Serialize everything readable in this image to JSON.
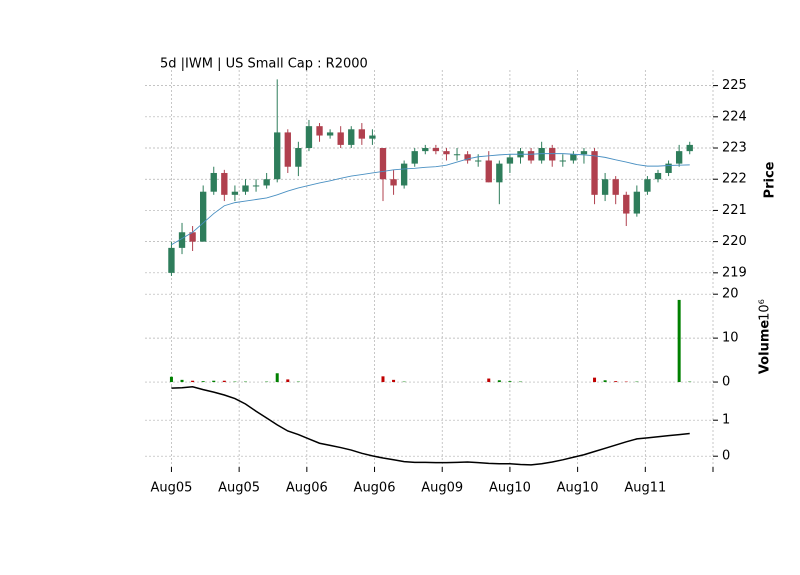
{
  "chart_data": [
    {
      "type": "candlestick",
      "title": "5d |IWM | US Small Cap : R2000",
      "ylabel": "Price",
      "open": [
        219.0,
        219.8,
        220.3,
        220.0,
        221.6,
        222.2,
        221.5,
        221.6,
        221.8,
        221.8,
        222.0,
        223.5,
        222.4,
        223.0,
        223.7,
        223.4,
        223.5,
        223.1,
        223.6,
        223.3,
        223.0,
        222.0,
        221.8,
        222.5,
        222.9,
        223.0,
        222.9,
        222.8,
        222.8,
        222.6,
        222.6,
        221.9,
        222.5,
        222.7,
        222.9,
        222.6,
        223.0,
        222.6,
        222.6,
        222.8,
        222.9,
        221.5,
        222.0,
        221.5,
        220.9,
        221.6,
        222.0,
        222.2,
        222.5,
        222.9
      ],
      "high": [
        220.0,
        220.6,
        220.5,
        221.8,
        222.4,
        222.3,
        221.8,
        222.0,
        222.0,
        222.2,
        225.2,
        223.6,
        223.2,
        223.9,
        223.8,
        223.6,
        223.7,
        223.7,
        223.8,
        223.6,
        223.0,
        222.3,
        222.6,
        223.0,
        223.1,
        223.1,
        223.0,
        223.0,
        222.9,
        222.8,
        222.9,
        222.6,
        222.8,
        223.0,
        223.0,
        223.2,
        223.1,
        222.8,
        222.9,
        223.0,
        223.0,
        222.2,
        222.1,
        221.6,
        221.8,
        222.1,
        222.3,
        222.6,
        223.1,
        223.2
      ],
      "low": [
        218.9,
        219.6,
        219.7,
        220.0,
        221.5,
        221.3,
        221.3,
        221.5,
        221.6,
        221.7,
        221.9,
        222.2,
        222.1,
        222.9,
        223.2,
        223.3,
        223.0,
        223.0,
        223.1,
        223.1,
        221.3,
        221.5,
        221.7,
        222.4,
        222.8,
        222.8,
        222.6,
        222.6,
        222.5,
        222.4,
        221.9,
        221.2,
        222.2,
        222.5,
        222.5,
        222.5,
        222.4,
        222.4,
        222.5,
        222.5,
        221.2,
        221.3,
        221.2,
        220.5,
        220.8,
        221.5,
        221.9,
        222.1,
        222.4,
        222.8
      ],
      "close": [
        219.8,
        220.3,
        220.0,
        221.6,
        222.2,
        221.5,
        221.6,
        221.8,
        221.8,
        222.0,
        223.5,
        222.4,
        223.0,
        223.7,
        223.4,
        223.5,
        223.1,
        223.6,
        223.3,
        223.4,
        222.0,
        221.8,
        222.5,
        222.9,
        223.0,
        222.9,
        222.8,
        222.8,
        222.6,
        222.6,
        221.9,
        222.5,
        222.7,
        222.9,
        222.6,
        223.0,
        222.6,
        222.6,
        222.8,
        222.9,
        221.5,
        222.0,
        221.5,
        220.9,
        221.6,
        222.0,
        222.2,
        222.5,
        222.9,
        223.1
      ],
      "up_color": "#2e7d5b",
      "down_color": "#b0404e",
      "overlay": {
        "color": "#4a90c2",
        "values": [
          219.9,
          220.1,
          220.3,
          220.6,
          220.9,
          221.15,
          221.25,
          221.3,
          221.35,
          221.4,
          221.5,
          221.62,
          221.72,
          221.8,
          221.88,
          221.95,
          222.03,
          222.1,
          222.15,
          222.2,
          222.25,
          222.3,
          222.33,
          222.35,
          222.38,
          222.4,
          222.45,
          222.55,
          222.65,
          222.72,
          222.75,
          222.78,
          222.8,
          222.8,
          222.8,
          222.82,
          222.82,
          222.82,
          222.8,
          222.78,
          222.75,
          222.7,
          222.62,
          222.55,
          222.47,
          222.42,
          222.42,
          222.44,
          222.45,
          222.46
        ]
      },
      "xlim": [
        -2.5,
        51.2
      ],
      "ylim": [
        218.45,
        225.5
      ],
      "yticks": [
        219,
        220,
        221,
        222,
        223,
        224,
        225
      ],
      "grid": true
    },
    {
      "type": "bar",
      "ylabel": "Volume",
      "offset_label": "10⁶",
      "values": [
        1.2,
        0.5,
        0.3,
        0.2,
        0.3,
        0.3,
        0.1,
        0.1,
        0,
        0.1,
        2.0,
        0.6,
        0.1,
        0,
        0,
        0,
        0,
        0,
        0,
        0,
        1.3,
        0.5,
        0.1,
        0,
        0,
        0,
        0,
        0,
        0,
        0,
        0.8,
        0.4,
        0.2,
        0.1,
        0,
        0,
        0,
        0,
        0,
        0,
        1.0,
        0.4,
        0.2,
        0.1,
        0.1,
        0,
        0,
        0,
        18.7,
        0.1
      ],
      "up_color": "#008000",
      "down_color": "#c00000",
      "xlim": [
        -2.5,
        51.2
      ],
      "ylim": [
        -0.9,
        20.5
      ],
      "yticks": [
        0,
        10,
        20
      ],
      "grid": true
    },
    {
      "type": "line",
      "color": "#000000",
      "values": [
        1.89,
        1.9,
        1.93,
        1.85,
        1.78,
        1.7,
        1.6,
        1.45,
        1.25,
        1.06,
        0.87,
        0.7,
        0.6,
        0.48,
        0.36,
        0.3,
        0.24,
        0.17,
        0.08,
        0.01,
        -0.05,
        -0.1,
        -0.15,
        -0.17,
        -0.17,
        -0.18,
        -0.18,
        -0.17,
        -0.16,
        -0.18,
        -0.2,
        -0.21,
        -0.21,
        -0.23,
        -0.24,
        -0.21,
        -0.16,
        -0.1,
        -0.03,
        0.04,
        0.13,
        0.22,
        0.31,
        0.4,
        0.48,
        0.51,
        0.54,
        0.57,
        0.6,
        0.63
      ],
      "xlim": [
        -2.5,
        51.2
      ],
      "ylim": [
        -0.3,
        1.95
      ],
      "yticks": [
        0,
        1
      ],
      "grid": true,
      "xticks": [
        {
          "value": 0,
          "label": "Aug05"
        },
        {
          "value": 6.4,
          "label": "Aug05"
        },
        {
          "value": 12.8,
          "label": "Aug06"
        },
        {
          "value": 19.2,
          "label": "Aug06"
        },
        {
          "value": 25.6,
          "label": "Aug09"
        },
        {
          "value": 32,
          "label": "Aug10"
        },
        {
          "value": 38.4,
          "label": "Aug10"
        },
        {
          "value": 44.8,
          "label": "Aug11"
        },
        {
          "value": 51.2,
          "label": null
        }
      ]
    }
  ]
}
